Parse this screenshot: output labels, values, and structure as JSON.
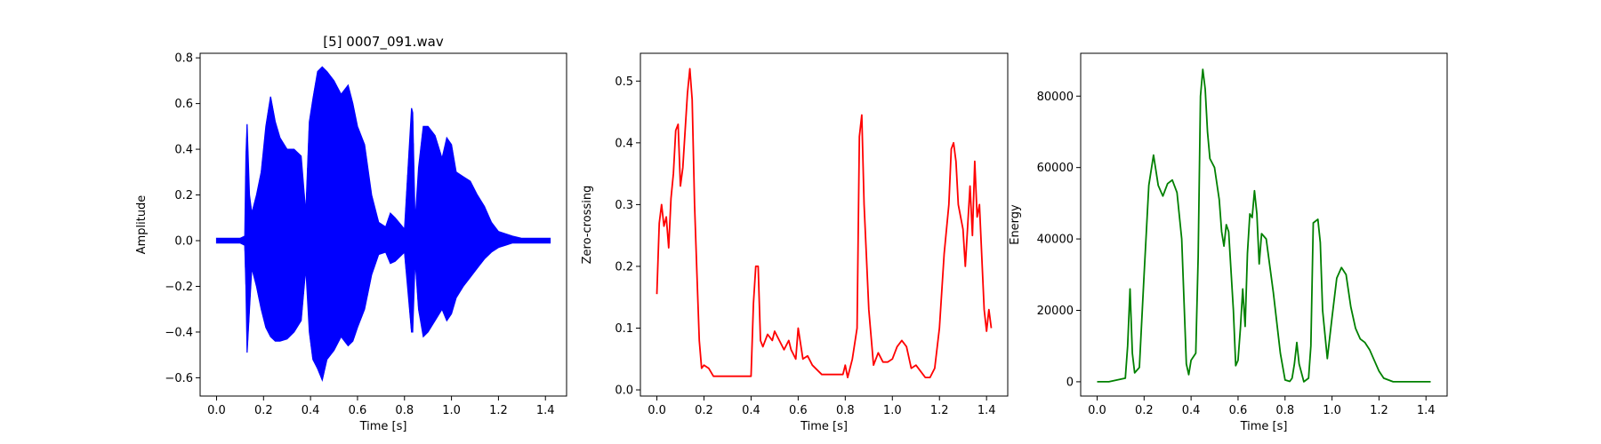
{
  "chart_data": [
    {
      "type": "line",
      "title": "[5] 0007_091.wav",
      "xlabel": "Time [s]",
      "ylabel": "Amplitude",
      "xlim": [
        -0.07,
        1.49
      ],
      "ylim": [
        -0.68,
        0.82
      ],
      "xticks": [
        0.0,
        0.2,
        0.4,
        0.6,
        0.8,
        1.0,
        1.2,
        1.4
      ],
      "xtick_labels": [
        "0.0",
        "0.2",
        "0.4",
        "0.6",
        "0.8",
        "1.0",
        "1.2",
        "1.4"
      ],
      "yticks": [
        -0.6,
        -0.4,
        -0.2,
        0.0,
        0.2,
        0.4,
        0.6,
        0.8
      ],
      "ytick_labels": [
        "−0.6",
        "−0.4",
        "−0.2",
        "0.0",
        "0.2",
        "0.4",
        "0.6",
        "0.8"
      ],
      "grid": false,
      "color": "#0000ff",
      "series": [
        {
          "kind": "waveform_envelope",
          "x": [
            0.0,
            0.1,
            0.12,
            0.125,
            0.13,
            0.14,
            0.15,
            0.17,
            0.19,
            0.21,
            0.23,
            0.25,
            0.27,
            0.3,
            0.33,
            0.36,
            0.38,
            0.395,
            0.41,
            0.43,
            0.45,
            0.47,
            0.5,
            0.53,
            0.56,
            0.58,
            0.6,
            0.63,
            0.66,
            0.69,
            0.72,
            0.74,
            0.76,
            0.8,
            0.83,
            0.835,
            0.845,
            0.86,
            0.88,
            0.9,
            0.93,
            0.96,
            0.98,
            1.0,
            1.02,
            1.05,
            1.08,
            1.11,
            1.14,
            1.17,
            1.2,
            1.23,
            1.26,
            1.3,
            1.35,
            1.42
          ],
          "upper": [
            0.01,
            0.01,
            0.02,
            0.37,
            0.51,
            0.2,
            0.12,
            0.2,
            0.3,
            0.5,
            0.63,
            0.52,
            0.45,
            0.4,
            0.4,
            0.37,
            0.12,
            0.52,
            0.62,
            0.74,
            0.76,
            0.74,
            0.7,
            0.64,
            0.68,
            0.6,
            0.5,
            0.42,
            0.2,
            0.08,
            0.06,
            0.12,
            0.1,
            0.05,
            0.58,
            0.56,
            0.08,
            0.32,
            0.5,
            0.5,
            0.46,
            0.36,
            0.45,
            0.42,
            0.3,
            0.28,
            0.26,
            0.2,
            0.15,
            0.08,
            0.04,
            0.03,
            0.02,
            0.01,
            0.01,
            0.01
          ],
          "lower": [
            -0.01,
            -0.01,
            -0.02,
            -0.2,
            -0.49,
            -0.3,
            -0.12,
            -0.2,
            -0.3,
            -0.38,
            -0.42,
            -0.44,
            -0.44,
            -0.43,
            -0.4,
            -0.35,
            -0.12,
            -0.4,
            -0.52,
            -0.56,
            -0.61,
            -0.52,
            -0.48,
            -0.42,
            -0.46,
            -0.44,
            -0.38,
            -0.3,
            -0.15,
            -0.06,
            -0.05,
            -0.1,
            -0.09,
            -0.05,
            -0.4,
            -0.4,
            -0.08,
            -0.3,
            -0.42,
            -0.4,
            -0.35,
            -0.3,
            -0.35,
            -0.32,
            -0.25,
            -0.2,
            -0.16,
            -0.12,
            -0.08,
            -0.05,
            -0.03,
            -0.02,
            -0.01,
            -0.01,
            -0.01,
            -0.01
          ]
        }
      ]
    },
    {
      "type": "line",
      "title": "",
      "xlabel": "Time [s]",
      "ylabel": "Zero-crossing",
      "xlim": [
        -0.07,
        1.49
      ],
      "ylim": [
        -0.01,
        0.545
      ],
      "xticks": [
        0.0,
        0.2,
        0.4,
        0.6,
        0.8,
        1.0,
        1.2,
        1.4
      ],
      "xtick_labels": [
        "0.0",
        "0.2",
        "0.4",
        "0.6",
        "0.8",
        "1.0",
        "1.2",
        "1.4"
      ],
      "yticks": [
        0.0,
        0.1,
        0.2,
        0.3,
        0.4,
        0.5
      ],
      "ytick_labels": [
        "0.0",
        "0.1",
        "0.2",
        "0.3",
        "0.4",
        "0.5"
      ],
      "grid": false,
      "color": "#ff0000",
      "series": [
        {
          "x": [
            0.0,
            0.01,
            0.02,
            0.03,
            0.04,
            0.05,
            0.06,
            0.07,
            0.08,
            0.09,
            0.1,
            0.11,
            0.12,
            0.13,
            0.14,
            0.15,
            0.16,
            0.17,
            0.18,
            0.19,
            0.2,
            0.22,
            0.24,
            0.26,
            0.3,
            0.35,
            0.4,
            0.41,
            0.42,
            0.43,
            0.44,
            0.45,
            0.47,
            0.49,
            0.5,
            0.52,
            0.54,
            0.56,
            0.57,
            0.59,
            0.6,
            0.62,
            0.64,
            0.66,
            0.7,
            0.75,
            0.79,
            0.8,
            0.81,
            0.83,
            0.85,
            0.86,
            0.87,
            0.88,
            0.9,
            0.92,
            0.94,
            0.96,
            0.98,
            1.0,
            1.02,
            1.04,
            1.06,
            1.08,
            1.1,
            1.14,
            1.16,
            1.18,
            1.2,
            1.22,
            1.24,
            1.25,
            1.26,
            1.27,
            1.28,
            1.3,
            1.31,
            1.33,
            1.34,
            1.35,
            1.36,
            1.37,
            1.39,
            1.4,
            1.41,
            1.42
          ],
          "y": [
            0.155,
            0.27,
            0.3,
            0.265,
            0.28,
            0.23,
            0.31,
            0.35,
            0.42,
            0.43,
            0.33,
            0.36,
            0.42,
            0.48,
            0.52,
            0.47,
            0.3,
            0.19,
            0.08,
            0.035,
            0.04,
            0.035,
            0.022,
            0.022,
            0.022,
            0.022,
            0.022,
            0.14,
            0.2,
            0.2,
            0.08,
            0.07,
            0.09,
            0.08,
            0.095,
            0.08,
            0.065,
            0.08,
            0.065,
            0.05,
            0.1,
            0.05,
            0.055,
            0.04,
            0.025,
            0.025,
            0.025,
            0.04,
            0.02,
            0.05,
            0.1,
            0.41,
            0.445,
            0.3,
            0.13,
            0.04,
            0.06,
            0.045,
            0.045,
            0.05,
            0.07,
            0.08,
            0.07,
            0.035,
            0.04,
            0.02,
            0.02,
            0.035,
            0.1,
            0.22,
            0.3,
            0.39,
            0.4,
            0.37,
            0.3,
            0.26,
            0.2,
            0.33,
            0.25,
            0.37,
            0.28,
            0.3,
            0.13,
            0.095,
            0.13,
            0.1
          ]
        }
      ]
    },
    {
      "type": "line",
      "title": "",
      "xlabel": "Time [s]",
      "ylabel": "Energy",
      "xlim": [
        -0.07,
        1.49
      ],
      "ylim": [
        -4000,
        92000
      ],
      "xticks": [
        0.0,
        0.2,
        0.4,
        0.6,
        0.8,
        1.0,
        1.2,
        1.4
      ],
      "xtick_labels": [
        "0.0",
        "0.2",
        "0.4",
        "0.6",
        "0.8",
        "1.0",
        "1.2",
        "1.4"
      ],
      "yticks": [
        0,
        20000,
        40000,
        60000,
        80000
      ],
      "ytick_labels": [
        "0",
        "20000",
        "40000",
        "60000",
        "80000"
      ],
      "grid": false,
      "color": "#008000",
      "series": [
        {
          "x": [
            0.0,
            0.05,
            0.12,
            0.13,
            0.14,
            0.15,
            0.16,
            0.18,
            0.2,
            0.22,
            0.24,
            0.26,
            0.28,
            0.3,
            0.32,
            0.34,
            0.36,
            0.38,
            0.39,
            0.4,
            0.42,
            0.43,
            0.44,
            0.45,
            0.46,
            0.47,
            0.48,
            0.5,
            0.52,
            0.53,
            0.54,
            0.55,
            0.56,
            0.58,
            0.59,
            0.6,
            0.61,
            0.62,
            0.63,
            0.64,
            0.65,
            0.66,
            0.67,
            0.68,
            0.69,
            0.7,
            0.72,
            0.75,
            0.78,
            0.8,
            0.82,
            0.83,
            0.84,
            0.85,
            0.86,
            0.88,
            0.9,
            0.91,
            0.92,
            0.94,
            0.95,
            0.96,
            0.98,
            1.0,
            1.02,
            1.04,
            1.06,
            1.08,
            1.1,
            1.12,
            1.14,
            1.16,
            1.18,
            1.2,
            1.22,
            1.26,
            1.3,
            1.35,
            1.42
          ],
          "y": [
            0,
            0,
            1000,
            10000,
            26000,
            8000,
            2500,
            4000,
            30000,
            55000,
            63500,
            55000,
            52000,
            55500,
            56500,
            53000,
            40000,
            5000,
            2000,
            6000,
            8000,
            35000,
            80000,
            87500,
            82000,
            70000,
            62500,
            60000,
            51000,
            42000,
            38000,
            44000,
            42000,
            20000,
            4500,
            6000,
            15000,
            26000,
            15500,
            36000,
            47000,
            46000,
            53500,
            47000,
            33000,
            41500,
            40000,
            25000,
            8000,
            500,
            100,
            1000,
            5000,
            11000,
            5000,
            0,
            1000,
            10000,
            44500,
            45500,
            39000,
            20000,
            6500,
            18000,
            29000,
            32000,
            30000,
            21000,
            15000,
            12000,
            11000,
            9000,
            6000,
            3000,
            1000,
            0,
            0,
            0,
            0
          ]
        }
      ]
    }
  ]
}
